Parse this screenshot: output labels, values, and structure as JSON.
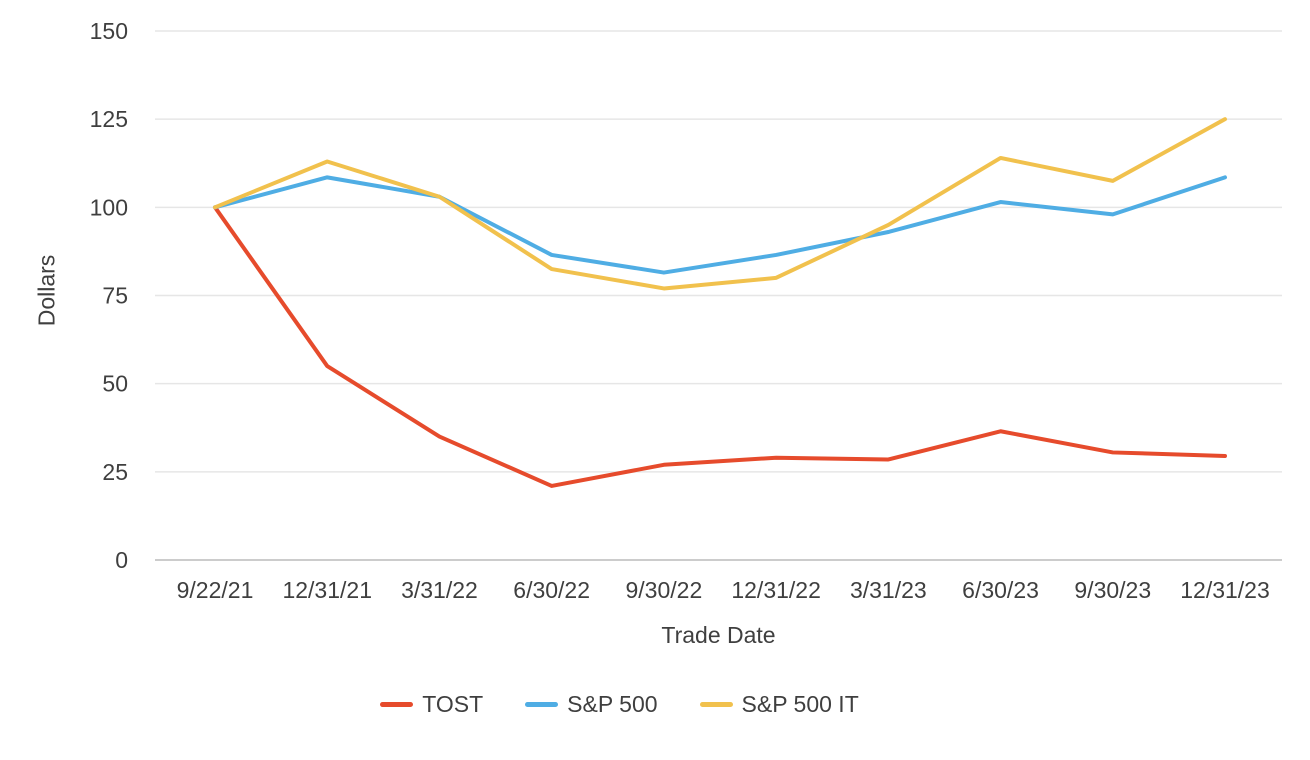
{
  "chart_data": {
    "type": "line",
    "title": "",
    "categories": [
      "9/22/21",
      "12/31/21",
      "3/31/22",
      "6/30/22",
      "9/30/22",
      "12/31/22",
      "3/31/23",
      "6/30/23",
      "9/30/23",
      "12/31/23"
    ],
    "series": [
      {
        "name": "TOST",
        "color": "#E64B2C",
        "values": [
          100,
          55,
          35,
          21,
          27,
          29,
          28.5,
          36.5,
          30.5,
          29.5
        ]
      },
      {
        "name": "S&P 500",
        "color": "#4FADE4",
        "values": [
          100,
          108.5,
          103,
          86.5,
          81.5,
          86.5,
          93,
          101.5,
          98,
          108.5
        ]
      },
      {
        "name": "S&P 500 IT",
        "color": "#F1C14D",
        "values": [
          100,
          113,
          103,
          82.5,
          77,
          80,
          95,
          114,
          107.5,
          125
        ]
      }
    ],
    "xlabel": "Trade Date",
    "ylabel": "Dollars",
    "ylim": [
      0,
      150
    ],
    "yticks": [
      0,
      25,
      50,
      75,
      100,
      125,
      150
    ],
    "grid": true,
    "legend_position": "bottom"
  },
  "colors": {
    "grid": "#e6e6e6",
    "axis": "#cccccc",
    "text": "#3f3f3f",
    "background": "#ffffff"
  }
}
